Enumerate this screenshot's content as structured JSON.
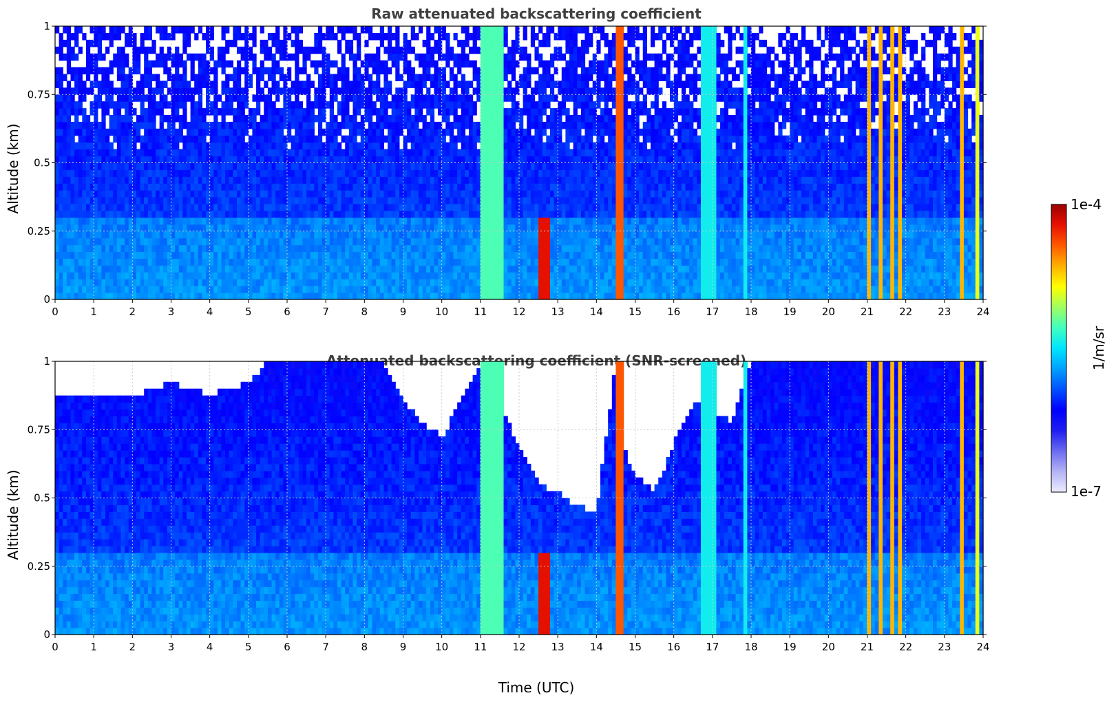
{
  "colormap": [
    "#ececff",
    "#b4b4f5",
    "#6a6af0",
    "#1e1ef0",
    "#0000ff",
    "#0050ff",
    "#00a0ff",
    "#00e5ff",
    "#40ffbf",
    "#a0ff60",
    "#ffff00",
    "#ffb000",
    "#ff5a00",
    "#e61000",
    "#9a0000"
  ],
  "chart_data": [
    {
      "type": "heatmap",
      "title": "Raw attenuated backscattering coefficient",
      "xlabel": "",
      "ylabel": "Altitude (km)",
      "xlim": [
        0,
        24
      ],
      "ylim": [
        0,
        1
      ],
      "xticks": [
        "0",
        "1",
        "2",
        "3",
        "4",
        "5",
        "6",
        "7",
        "8",
        "9",
        "10",
        "11",
        "12",
        "13",
        "14",
        "15",
        "16",
        "17",
        "18",
        "19",
        "20",
        "21",
        "22",
        "23",
        "24"
      ],
      "yticks": [
        "0",
        "0.25",
        "0.5",
        "0.75",
        "1"
      ],
      "grid": true,
      "snr_screened": false,
      "clear_air_signal": "weak blue background with sparse white noise aloft",
      "features": [
        {
          "t_start": 11.0,
          "t_end": 11.6,
          "intensity": "green-cyan, full column"
        },
        {
          "t_start": 12.5,
          "t_end": 12.8,
          "z_top": 0.3,
          "intensity": "red-black patch near 0.25 km"
        },
        {
          "t_start": 14.5,
          "t_end": 14.7,
          "intensity": "orange-red, full column"
        },
        {
          "t_start": 16.7,
          "t_end": 17.1,
          "intensity": "cyan, full column"
        },
        {
          "t_start": 17.8,
          "t_end": 17.95,
          "intensity": "cyan, full column"
        },
        {
          "t_start": 21.0,
          "t_end": 21.1,
          "intensity": "yellow-orange stripe"
        },
        {
          "t_start": 21.3,
          "t_end": 21.4,
          "intensity": "yellow-orange stripe"
        },
        {
          "t_start": 21.6,
          "t_end": 21.7,
          "intensity": "yellow-orange stripe"
        },
        {
          "t_start": 21.8,
          "t_end": 21.9,
          "intensity": "yellow-orange stripe"
        },
        {
          "t_start": 23.45,
          "t_end": 23.55,
          "intensity": "orange stripe"
        },
        {
          "t_start": 23.8,
          "t_end": 23.9,
          "intensity": "yellow stripe"
        }
      ]
    },
    {
      "type": "heatmap",
      "title": "Attenuated backscattering coefficient (SNR-screened)",
      "xlabel": "Time (UTC)",
      "ylabel": "Altitude (km)",
      "xlim": [
        0,
        24
      ],
      "ylim": [
        0,
        1
      ],
      "xticks": [
        "0",
        "1",
        "2",
        "3",
        "4",
        "5",
        "6",
        "7",
        "8",
        "9",
        "10",
        "11",
        "12",
        "13",
        "14",
        "15",
        "16",
        "17",
        "18",
        "19",
        "20",
        "21",
        "22",
        "23",
        "24"
      ],
      "yticks": [
        "0",
        "0.25",
        "0.5",
        "0.75",
        "1"
      ],
      "grid": true,
      "snr_screened": true,
      "screened_top_km": [
        {
          "t": 0,
          "z": 0.87
        },
        {
          "t": 1,
          "z": 0.88
        },
        {
          "t": 2,
          "z": 0.87
        },
        {
          "t": 3,
          "z": 0.92
        },
        {
          "t": 4,
          "z": 0.88
        },
        {
          "t": 5,
          "z": 0.92
        },
        {
          "t": 5.5,
          "z": 1.0
        },
        {
          "t": 8.5,
          "z": 1.0
        },
        {
          "t": 9.0,
          "z": 0.85
        },
        {
          "t": 9.5,
          "z": 0.78
        },
        {
          "t": 10.0,
          "z": 0.72
        },
        {
          "t": 11.0,
          "z": 1.0
        },
        {
          "t": 11.8,
          "z": 0.75
        },
        {
          "t": 12.5,
          "z": 0.55
        },
        {
          "t": 13.0,
          "z": 0.52
        },
        {
          "t": 13.5,
          "z": 0.47
        },
        {
          "t": 14.0,
          "z": 0.45
        },
        {
          "t": 14.5,
          "z": 1.0
        },
        {
          "t": 14.8,
          "z": 0.62
        },
        {
          "t": 15.5,
          "z": 0.52
        },
        {
          "t": 16.0,
          "z": 0.7
        },
        {
          "t": 16.5,
          "z": 0.85
        },
        {
          "t": 17.5,
          "z": 0.78
        },
        {
          "t": 18.0,
          "z": 1.0
        },
        {
          "t": 24.0,
          "z": 1.0
        }
      ],
      "features": [
        {
          "t_start": 11.0,
          "t_end": 11.6,
          "intensity": "green-cyan, full column"
        },
        {
          "t_start": 12.5,
          "t_end": 12.8,
          "z_top": 0.3,
          "intensity": "red-black patch near 0.25 km"
        },
        {
          "t_start": 14.5,
          "t_end": 14.7,
          "intensity": "orange-red, full column"
        },
        {
          "t_start": 16.7,
          "t_end": 17.1,
          "intensity": "cyan, full column"
        },
        {
          "t_start": 17.8,
          "t_end": 17.95,
          "intensity": "cyan, full column"
        },
        {
          "t_start": 21.0,
          "t_end": 21.1,
          "intensity": "yellow-orange stripe"
        },
        {
          "t_start": 21.3,
          "t_end": 21.4,
          "intensity": "yellow-orange stripe"
        },
        {
          "t_start": 21.6,
          "t_end": 21.7,
          "intensity": "yellow-orange stripe"
        },
        {
          "t_start": 21.8,
          "t_end": 21.9,
          "intensity": "yellow-orange stripe"
        },
        {
          "t_start": 23.45,
          "t_end": 23.55,
          "intensity": "orange stripe"
        },
        {
          "t_start": 23.8,
          "t_end": 23.9,
          "intensity": "yellow stripe"
        }
      ]
    }
  ],
  "colorbar": {
    "label": "1/m/sr",
    "min_label": "1e-7",
    "max_label": "1e-4",
    "scale": "log"
  }
}
